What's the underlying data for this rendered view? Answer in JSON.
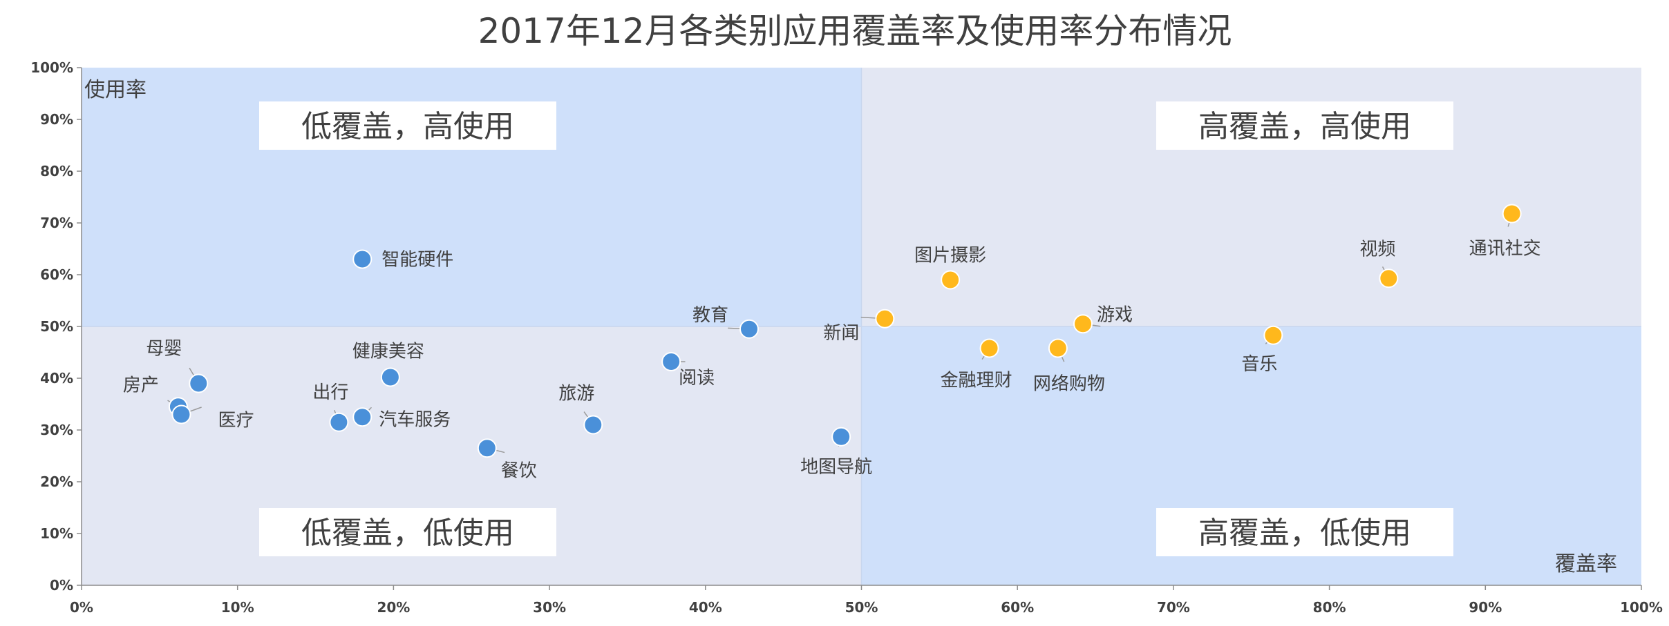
{
  "chart_data": {
    "type": "scatter",
    "title": "2017年12月各类别应用覆盖率及使用率分布情况",
    "xlabel": "覆盖率",
    "ylabel": "使用率",
    "xlim": [
      0,
      100
    ],
    "ylim": [
      0,
      100
    ],
    "x_ticks": [
      "0%",
      "10%",
      "20%",
      "30%",
      "40%",
      "50%",
      "60%",
      "70%",
      "80%",
      "90%",
      "100%"
    ],
    "y_ticks": [
      "0%",
      "10%",
      "20%",
      "30%",
      "40%",
      "50%",
      "60%",
      "70%",
      "80%",
      "90%",
      "100%"
    ],
    "quadrant_split": {
      "x": 50,
      "y": 50
    },
    "quadrant_labels": {
      "top_left": "低覆盖，高使用",
      "top_right": "高覆盖，高使用",
      "bottom_left": "低覆盖，低使用",
      "bottom_right": "高覆盖，低使用"
    },
    "colors": {
      "low_coverage": "#4a90d9",
      "high_coverage": "#ffb81c",
      "quadrant_blue": "#cfe0fa",
      "quadrant_grey": "#e3e7f3"
    },
    "points": [
      {
        "name": "智能硬件",
        "x": 18.0,
        "y": 63.0
      },
      {
        "name": "母婴",
        "x": 7.5,
        "y": 39.0
      },
      {
        "name": "房产",
        "x": 6.2,
        "y": 34.5
      },
      {
        "name": "医疗",
        "x": 6.4,
        "y": 33.0
      },
      {
        "name": "健康美容",
        "x": 19.8,
        "y": 40.2
      },
      {
        "name": "出行",
        "x": 16.5,
        "y": 31.5
      },
      {
        "name": "汽车服务",
        "x": 18.0,
        "y": 32.5
      },
      {
        "name": "餐饮",
        "x": 26.0,
        "y": 26.5
      },
      {
        "name": "旅游",
        "x": 32.8,
        "y": 31.0
      },
      {
        "name": "阅读",
        "x": 37.8,
        "y": 43.2
      },
      {
        "name": "教育",
        "x": 42.8,
        "y": 49.5
      },
      {
        "name": "地图导航",
        "x": 48.7,
        "y": 28.7
      },
      {
        "name": "新闻",
        "x": 51.5,
        "y": 51.5
      },
      {
        "name": "图片摄影",
        "x": 55.7,
        "y": 59.0
      },
      {
        "name": "金融理财",
        "x": 58.2,
        "y": 45.8
      },
      {
        "name": "网络购物",
        "x": 62.6,
        "y": 45.8
      },
      {
        "name": "游戏",
        "x": 64.2,
        "y": 50.5
      },
      {
        "name": "音乐",
        "x": 76.4,
        "y": 48.3
      },
      {
        "name": "视频",
        "x": 83.8,
        "y": 59.3
      },
      {
        "name": "通讯社交",
        "x": 91.7,
        "y": 71.8
      }
    ]
  }
}
